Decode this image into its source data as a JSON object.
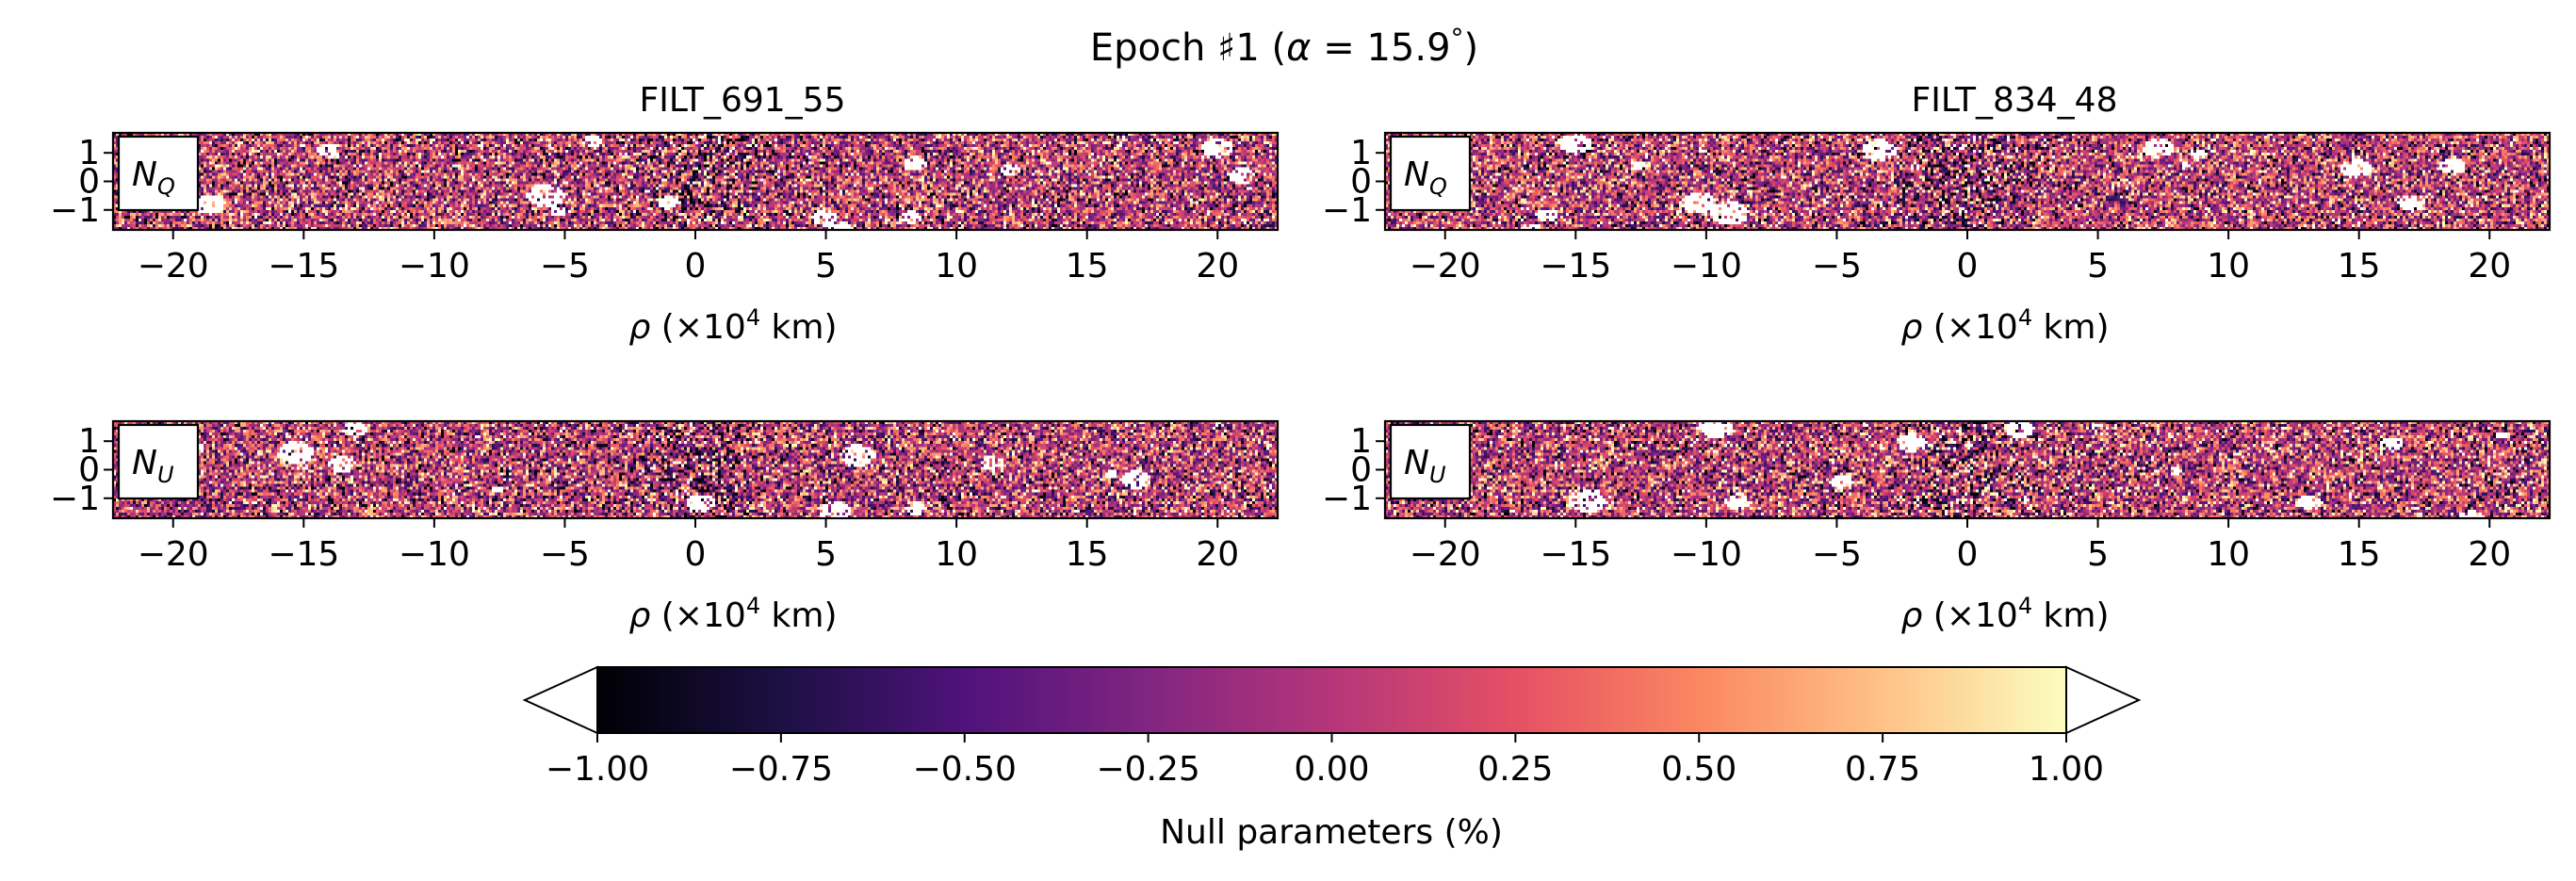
{
  "chart_data": {
    "type": "heatmap",
    "title": "Epoch ♯1 (α = 15.9°)",
    "title_parts": {
      "prefix": "Epoch ♯1 (",
      "alpha": "α",
      "middle": " = 15.9",
      "degree": "°",
      "suffix": ")"
    },
    "columns": [
      "FILT_691_55",
      "FILT_834_48"
    ],
    "rows": [
      {
        "label": "N_Q",
        "label_main": "N",
        "label_sub": "Q"
      },
      {
        "label": "N_U",
        "label_main": "N",
        "label_sub": "U"
      }
    ],
    "xlabel": "ρ (×10⁴ km)",
    "xlabel_parts": {
      "rho": "ρ",
      "text": " (×10",
      "exp": "4",
      "unit": " km)"
    },
    "xlim": [
      -22.3,
      22.3
    ],
    "xticks": [
      -20,
      -15,
      -10,
      -5,
      0,
      5,
      10,
      15,
      20
    ],
    "xtick_labels": [
      "−20",
      "−15",
      "−10",
      "−5",
      "0",
      "5",
      "10",
      "15",
      "20"
    ],
    "ylim": [
      1.7,
      -1.7
    ],
    "yticks": [
      -1,
      0,
      1
    ],
    "ytick_labels": [
      "−1",
      "0",
      "1"
    ],
    "colorbar": {
      "label": "Null parameters (%)",
      "range": [
        -1.0,
        1.0
      ],
      "ticks": [
        -1.0,
        -0.75,
        -0.5,
        -0.25,
        0.0,
        0.25,
        0.5,
        0.75,
        1.0
      ],
      "tick_labels": [
        "−1.00",
        "−0.75",
        "−0.50",
        "−0.25",
        "0.00",
        "0.25",
        "0.50",
        "0.75",
        "1.00"
      ],
      "colormap": "magma",
      "extend": "both",
      "colormap_stops": [
        "#000004",
        "#1c1044",
        "#4f127b",
        "#812581",
        "#b5367a",
        "#e55064",
        "#fb8761",
        "#fec287",
        "#fcfdbf"
      ]
    }
  }
}
